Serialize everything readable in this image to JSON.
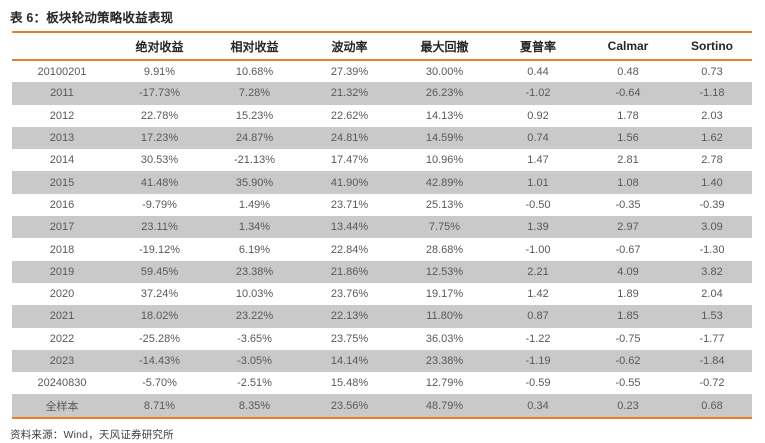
{
  "title": "表 6：板块轮动策略收益表现",
  "footer": "资料来源：Wind，天风证券研究所",
  "colors": {
    "accent": "#ED7C23",
    "stripe": "#C9C9C9",
    "cell_text": "#595959",
    "heading_text": "#262626"
  },
  "table": {
    "columns": [
      "",
      "绝对收益",
      "相对收益",
      "波动率",
      "最大回撤",
      "夏普率",
      "Calmar",
      "Sortino"
    ],
    "rows": [
      {
        "label": "20100201",
        "values": [
          "9.91%",
          "10.68%",
          "27.39%",
          "30.00%",
          "0.44",
          "0.48",
          "0.73"
        ]
      },
      {
        "label": "2011",
        "values": [
          "-17.73%",
          "7.28%",
          "21.32%",
          "26.23%",
          "-1.02",
          "-0.64",
          "-1.18"
        ]
      },
      {
        "label": "2012",
        "values": [
          "22.78%",
          "15.23%",
          "22.62%",
          "14.13%",
          "0.92",
          "1.78",
          "2.03"
        ]
      },
      {
        "label": "2013",
        "values": [
          "17.23%",
          "24.87%",
          "24.81%",
          "14.59%",
          "0.74",
          "1.56",
          "1.62"
        ]
      },
      {
        "label": "2014",
        "values": [
          "30.53%",
          "-21.13%",
          "17.47%",
          "10.96%",
          "1.47",
          "2.81",
          "2.78"
        ]
      },
      {
        "label": "2015",
        "values": [
          "41.48%",
          "35.90%",
          "41.90%",
          "42.89%",
          "1.01",
          "1.08",
          "1.40"
        ]
      },
      {
        "label": "2016",
        "values": [
          "-9.79%",
          "1.49%",
          "23.71%",
          "25.13%",
          "-0.50",
          "-0.35",
          "-0.39"
        ]
      },
      {
        "label": "2017",
        "values": [
          "23.11%",
          "1.34%",
          "13.44%",
          "7.75%",
          "1.39",
          "2.97",
          "3.09"
        ]
      },
      {
        "label": "2018",
        "values": [
          "-19.12%",
          "6.19%",
          "22.84%",
          "28.68%",
          "-1.00",
          "-0.67",
          "-1.30"
        ]
      },
      {
        "label": "2019",
        "values": [
          "59.45%",
          "23.38%",
          "21.86%",
          "12.53%",
          "2.21",
          "4.09",
          "3.82"
        ]
      },
      {
        "label": "2020",
        "values": [
          "37.24%",
          "10.03%",
          "23.76%",
          "19.17%",
          "1.42",
          "1.89",
          "2.04"
        ]
      },
      {
        "label": "2021",
        "values": [
          "18.02%",
          "23.22%",
          "22.13%",
          "11.80%",
          "0.87",
          "1.85",
          "1.53"
        ]
      },
      {
        "label": "2022",
        "values": [
          "-25.28%",
          "-3.65%",
          "23.75%",
          "36.03%",
          "-1.22",
          "-0.75",
          "-1.77"
        ]
      },
      {
        "label": "2023",
        "values": [
          "-14.43%",
          "-3.05%",
          "14.14%",
          "23.38%",
          "-1.19",
          "-0.62",
          "-1.84"
        ]
      },
      {
        "label": "20240830",
        "values": [
          "-5.70%",
          "-2.51%",
          "15.48%",
          "12.79%",
          "-0.59",
          "-0.55",
          "-0.72"
        ]
      },
      {
        "label": "全样本",
        "values": [
          "8.71%",
          "8.35%",
          "23.56%",
          "48.79%",
          "0.34",
          "0.23",
          "0.68"
        ]
      }
    ]
  }
}
